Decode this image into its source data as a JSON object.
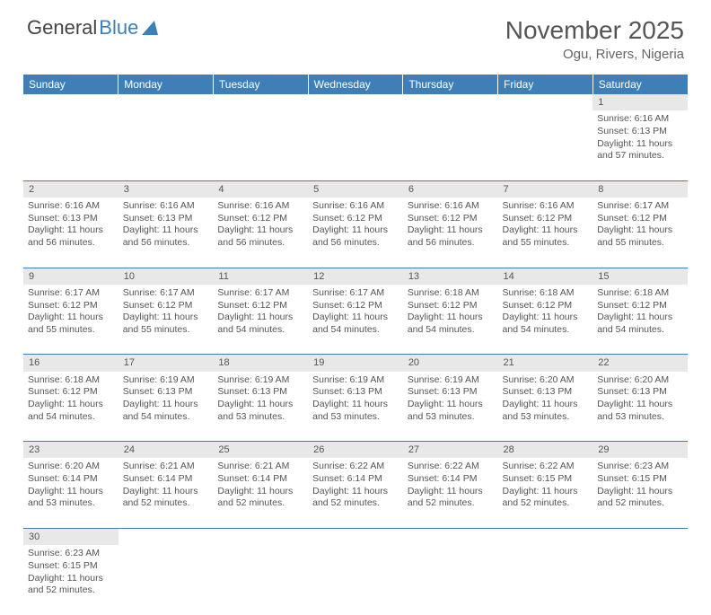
{
  "logo": {
    "word1": "General",
    "word2": "Blue"
  },
  "title": "November 2025",
  "location": "Ogu, Rivers, Nigeria",
  "colors": {
    "header_bg": "#3e7fb8",
    "header_text": "#ffffff",
    "daynum_bg": "#e8e8e8",
    "row_border": "#3e7fb8",
    "body_text": "#555555"
  },
  "weekdays": [
    "Sunday",
    "Monday",
    "Tuesday",
    "Wednesday",
    "Thursday",
    "Friday",
    "Saturday"
  ],
  "weeks": [
    {
      "nums": [
        "",
        "",
        "",
        "",
        "",
        "",
        "1"
      ],
      "cells": [
        null,
        null,
        null,
        null,
        null,
        null,
        {
          "sunrise": "Sunrise: 6:16 AM",
          "sunset": "Sunset: 6:13 PM",
          "day1": "Daylight: 11 hours",
          "day2": "and 57 minutes."
        }
      ]
    },
    {
      "nums": [
        "2",
        "3",
        "4",
        "5",
        "6",
        "7",
        "8"
      ],
      "cells": [
        {
          "sunrise": "Sunrise: 6:16 AM",
          "sunset": "Sunset: 6:13 PM",
          "day1": "Daylight: 11 hours",
          "day2": "and 56 minutes."
        },
        {
          "sunrise": "Sunrise: 6:16 AM",
          "sunset": "Sunset: 6:13 PM",
          "day1": "Daylight: 11 hours",
          "day2": "and 56 minutes."
        },
        {
          "sunrise": "Sunrise: 6:16 AM",
          "sunset": "Sunset: 6:12 PM",
          "day1": "Daylight: 11 hours",
          "day2": "and 56 minutes."
        },
        {
          "sunrise": "Sunrise: 6:16 AM",
          "sunset": "Sunset: 6:12 PM",
          "day1": "Daylight: 11 hours",
          "day2": "and 56 minutes."
        },
        {
          "sunrise": "Sunrise: 6:16 AM",
          "sunset": "Sunset: 6:12 PM",
          "day1": "Daylight: 11 hours",
          "day2": "and 56 minutes."
        },
        {
          "sunrise": "Sunrise: 6:16 AM",
          "sunset": "Sunset: 6:12 PM",
          "day1": "Daylight: 11 hours",
          "day2": "and 55 minutes."
        },
        {
          "sunrise": "Sunrise: 6:17 AM",
          "sunset": "Sunset: 6:12 PM",
          "day1": "Daylight: 11 hours",
          "day2": "and 55 minutes."
        }
      ]
    },
    {
      "nums": [
        "9",
        "10",
        "11",
        "12",
        "13",
        "14",
        "15"
      ],
      "cells": [
        {
          "sunrise": "Sunrise: 6:17 AM",
          "sunset": "Sunset: 6:12 PM",
          "day1": "Daylight: 11 hours",
          "day2": "and 55 minutes."
        },
        {
          "sunrise": "Sunrise: 6:17 AM",
          "sunset": "Sunset: 6:12 PM",
          "day1": "Daylight: 11 hours",
          "day2": "and 55 minutes."
        },
        {
          "sunrise": "Sunrise: 6:17 AM",
          "sunset": "Sunset: 6:12 PM",
          "day1": "Daylight: 11 hours",
          "day2": "and 54 minutes."
        },
        {
          "sunrise": "Sunrise: 6:17 AM",
          "sunset": "Sunset: 6:12 PM",
          "day1": "Daylight: 11 hours",
          "day2": "and 54 minutes."
        },
        {
          "sunrise": "Sunrise: 6:18 AM",
          "sunset": "Sunset: 6:12 PM",
          "day1": "Daylight: 11 hours",
          "day2": "and 54 minutes."
        },
        {
          "sunrise": "Sunrise: 6:18 AM",
          "sunset": "Sunset: 6:12 PM",
          "day1": "Daylight: 11 hours",
          "day2": "and 54 minutes."
        },
        {
          "sunrise": "Sunrise: 6:18 AM",
          "sunset": "Sunset: 6:12 PM",
          "day1": "Daylight: 11 hours",
          "day2": "and 54 minutes."
        }
      ]
    },
    {
      "nums": [
        "16",
        "17",
        "18",
        "19",
        "20",
        "21",
        "22"
      ],
      "cells": [
        {
          "sunrise": "Sunrise: 6:18 AM",
          "sunset": "Sunset: 6:12 PM",
          "day1": "Daylight: 11 hours",
          "day2": "and 54 minutes."
        },
        {
          "sunrise": "Sunrise: 6:19 AM",
          "sunset": "Sunset: 6:13 PM",
          "day1": "Daylight: 11 hours",
          "day2": "and 54 minutes."
        },
        {
          "sunrise": "Sunrise: 6:19 AM",
          "sunset": "Sunset: 6:13 PM",
          "day1": "Daylight: 11 hours",
          "day2": "and 53 minutes."
        },
        {
          "sunrise": "Sunrise: 6:19 AM",
          "sunset": "Sunset: 6:13 PM",
          "day1": "Daylight: 11 hours",
          "day2": "and 53 minutes."
        },
        {
          "sunrise": "Sunrise: 6:19 AM",
          "sunset": "Sunset: 6:13 PM",
          "day1": "Daylight: 11 hours",
          "day2": "and 53 minutes."
        },
        {
          "sunrise": "Sunrise: 6:20 AM",
          "sunset": "Sunset: 6:13 PM",
          "day1": "Daylight: 11 hours",
          "day2": "and 53 minutes."
        },
        {
          "sunrise": "Sunrise: 6:20 AM",
          "sunset": "Sunset: 6:13 PM",
          "day1": "Daylight: 11 hours",
          "day2": "and 53 minutes."
        }
      ]
    },
    {
      "nums": [
        "23",
        "24",
        "25",
        "26",
        "27",
        "28",
        "29"
      ],
      "cells": [
        {
          "sunrise": "Sunrise: 6:20 AM",
          "sunset": "Sunset: 6:14 PM",
          "day1": "Daylight: 11 hours",
          "day2": "and 53 minutes."
        },
        {
          "sunrise": "Sunrise: 6:21 AM",
          "sunset": "Sunset: 6:14 PM",
          "day1": "Daylight: 11 hours",
          "day2": "and 52 minutes."
        },
        {
          "sunrise": "Sunrise: 6:21 AM",
          "sunset": "Sunset: 6:14 PM",
          "day1": "Daylight: 11 hours",
          "day2": "and 52 minutes."
        },
        {
          "sunrise": "Sunrise: 6:22 AM",
          "sunset": "Sunset: 6:14 PM",
          "day1": "Daylight: 11 hours",
          "day2": "and 52 minutes."
        },
        {
          "sunrise": "Sunrise: 6:22 AM",
          "sunset": "Sunset: 6:14 PM",
          "day1": "Daylight: 11 hours",
          "day2": "and 52 minutes."
        },
        {
          "sunrise": "Sunrise: 6:22 AM",
          "sunset": "Sunset: 6:15 PM",
          "day1": "Daylight: 11 hours",
          "day2": "and 52 minutes."
        },
        {
          "sunrise": "Sunrise: 6:23 AM",
          "sunset": "Sunset: 6:15 PM",
          "day1": "Daylight: 11 hours",
          "day2": "and 52 minutes."
        }
      ]
    },
    {
      "nums": [
        "30",
        "",
        "",
        "",
        "",
        "",
        ""
      ],
      "cells": [
        {
          "sunrise": "Sunrise: 6:23 AM",
          "sunset": "Sunset: 6:15 PM",
          "day1": "Daylight: 11 hours",
          "day2": "and 52 minutes."
        },
        null,
        null,
        null,
        null,
        null,
        null
      ]
    }
  ]
}
